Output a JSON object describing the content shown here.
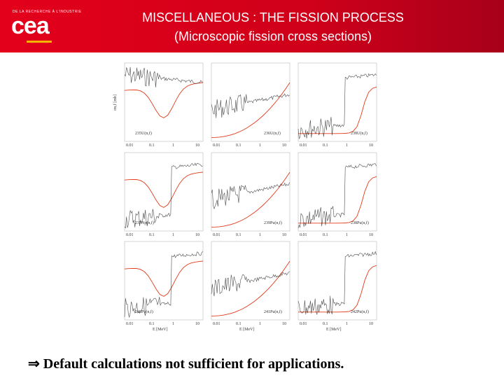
{
  "header": {
    "org": "DE LA RECHERCHE À L'INDUSTRIE",
    "logo": "cea",
    "title": "MISCELLANEOUS : THE FISSION PROCESS",
    "subtitle": "(Microscopic fission cross sections)"
  },
  "figure": {
    "y_label": "σn,f [mb]",
    "x_label": "E [MeV]",
    "x_ticks": [
      "0.01",
      "0.1",
      "1",
      "10"
    ],
    "panels": [
      "235U(n,f)",
      "236U(n,f)",
      "238U(n,f)",
      "237Np(n,f)",
      "239Pu(n,f)",
      "238Pu(n,f)",
      "240Pu(n,f)",
      "241Pu(n,f)",
      "242Pu(n,f)"
    ]
  },
  "bullet": "⇒ Default calculations not sufficient for applications."
}
